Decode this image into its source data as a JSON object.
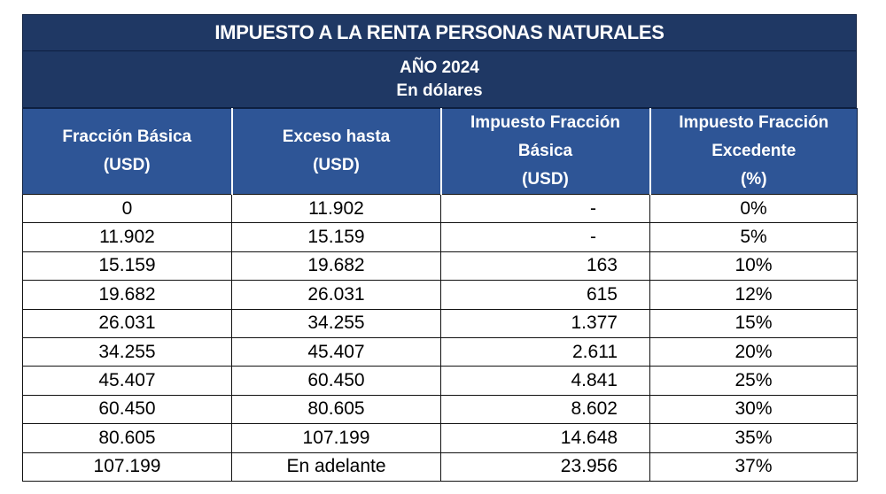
{
  "title": "IMPUESTO A LA  RENTA PERSONAS NATURALES",
  "year": "AÑO 2024",
  "currency_note": "En dólares",
  "headers": {
    "fraccion_basica": [
      "Fracción Básica",
      "(USD)"
    ],
    "exceso_hasta": [
      "Exceso hasta",
      "(USD)"
    ],
    "impuesto_fraccion_basica": [
      "Impuesto Fracción",
      "Básica",
      "(USD)"
    ],
    "impuesto_fraccion_excedente": [
      "Impuesto Fracción",
      "Excedente",
      "(%)"
    ]
  },
  "rows": [
    {
      "fraccion_basica": "0",
      "exceso_hasta": "11.902",
      "impuesto": "-",
      "porcentaje": "0%"
    },
    {
      "fraccion_basica": "11.902",
      "exceso_hasta": "15.159",
      "impuesto": "-",
      "porcentaje": "5%"
    },
    {
      "fraccion_basica": "15.159",
      "exceso_hasta": "19.682",
      "impuesto": "163",
      "porcentaje": "10%"
    },
    {
      "fraccion_basica": "19.682",
      "exceso_hasta": "26.031",
      "impuesto": "615",
      "porcentaje": "12%"
    },
    {
      "fraccion_basica": "26.031",
      "exceso_hasta": "34.255",
      "impuesto": "1.377",
      "porcentaje": "15%"
    },
    {
      "fraccion_basica": "34.255",
      "exceso_hasta": "45.407",
      "impuesto": "2.611",
      "porcentaje": "20%"
    },
    {
      "fraccion_basica": "45.407",
      "exceso_hasta": "60.450",
      "impuesto": "4.841",
      "porcentaje": "25%"
    },
    {
      "fraccion_basica": "60.450",
      "exceso_hasta": "80.605",
      "impuesto": "8.602",
      "porcentaje": "30%"
    },
    {
      "fraccion_basica": "80.605",
      "exceso_hasta": "107.199",
      "impuesto": "14.648",
      "porcentaje": "35%"
    },
    {
      "fraccion_basica": "107.199",
      "exceso_hasta": "En adelante",
      "impuesto": "23.956",
      "porcentaje": "37%"
    }
  ]
}
